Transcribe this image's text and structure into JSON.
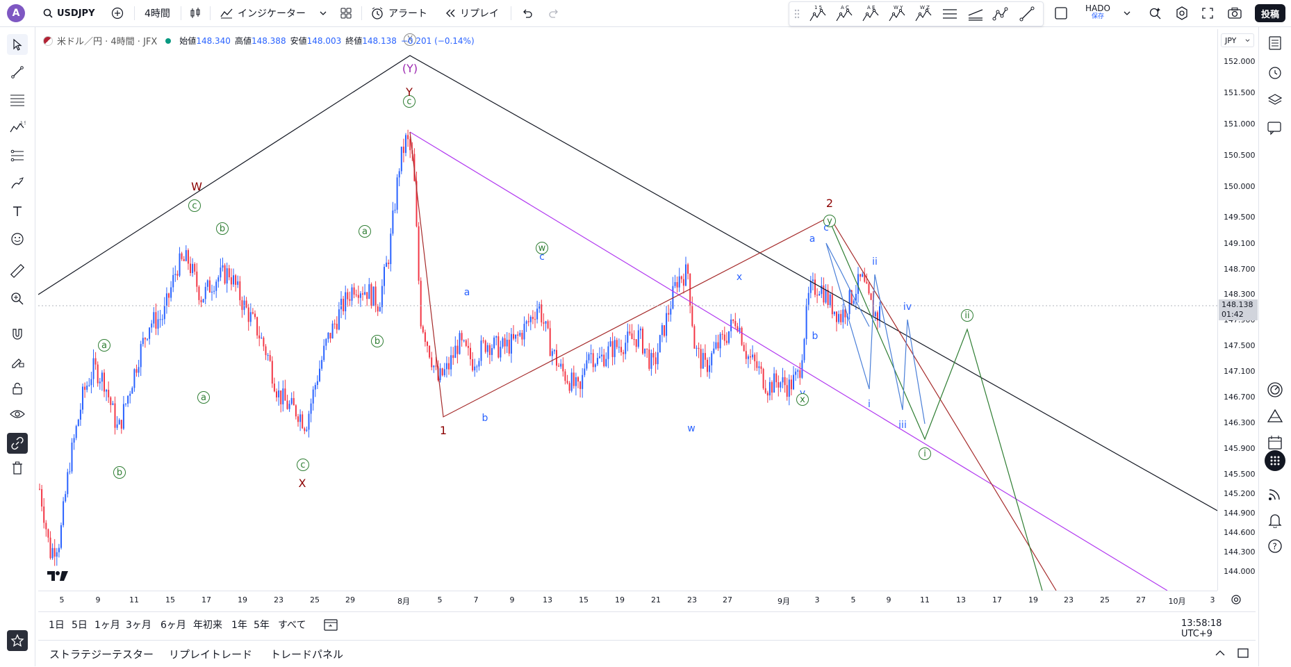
{
  "topbar": {
    "avatar": "A",
    "symbol": "USDJPY",
    "interval": "4時間",
    "indicators": "インジケーター",
    "alert": "アラート",
    "replay": "リプレイ",
    "layout_name": "HADO",
    "layout_sub": "保存",
    "post": "投稿",
    "draw_tools": [
      {
        "top": "1 5",
        "name": "wave-12345-tool"
      },
      {
        "top": "A C",
        "name": "wave-abc-tool"
      },
      {
        "top": "A E",
        "name": "wave-abcde-tool"
      },
      {
        "top": "W Y",
        "name": "wave-wxy-tool"
      },
      {
        "top": "W Z",
        "name": "wave-wxyxz-tool"
      }
    ]
  },
  "legend": {
    "title": "米ドル／円 · 4時間 · JFX",
    "open_label": "始値",
    "open": "148.340",
    "high_label": "高値",
    "high": "148.388",
    "low_label": "安値",
    "low": "148.003",
    "close_label": "終値",
    "close": "148.138",
    "change": "−0.201 (−0.14%)"
  },
  "price_axis": {
    "currency": "JPY",
    "labels": [
      "152.000",
      "151.500",
      "151.000",
      "150.500",
      "150.000",
      "149.500",
      "149.100",
      "148.700",
      "148.300",
      "147.900",
      "147.500",
      "147.100",
      "146.700",
      "146.300",
      "145.900",
      "145.500",
      "145.200",
      "144.900",
      "144.600",
      "144.300",
      "144.000"
    ],
    "current_price": "148.138",
    "countdown": "01:42"
  },
  "time_axis": {
    "labels": [
      "5",
      "9",
      "11",
      "15",
      "17",
      "19",
      "23",
      "25",
      "29",
      "8月",
      "5",
      "7",
      "9",
      "13",
      "15",
      "19",
      "21",
      "23",
      "27",
      "9月",
      "3",
      "5",
      "9",
      "11",
      "13",
      "17",
      "19",
      "23",
      "25",
      "27",
      "10月",
      "3"
    ]
  },
  "range_bar": {
    "ranges": [
      "1日",
      "5日",
      "1ヶ月",
      "3ヶ月",
      "6ヶ月",
      "年初来",
      "1年",
      "5年",
      "すべて"
    ],
    "clock": "13:58:18 UTC+9"
  },
  "bottom_panel": {
    "tabs": [
      "ストラテジーテスター",
      "リプレイトレード",
      "トレードパネル"
    ]
  },
  "wave_labels": {
    "W": "W",
    "X": "X",
    "Y": "Y",
    "Y_paren": "(Y)",
    "X_paren": "X",
    "one": "1",
    "two": "2",
    "circ_a": "a",
    "circ_b": "b",
    "circ_c": "c",
    "circ_w": "w",
    "circ_x": "x",
    "circ_y": "y",
    "circ_i": "i",
    "circ_ii": "ii",
    "a": "a",
    "b": "b",
    "c": "c",
    "w": "w",
    "x": "x",
    "y": "y",
    "i": "i",
    "ii": "ii",
    "iii": "iii",
    "iv": "iv"
  },
  "colors": {
    "up_candle": "#2962ff",
    "down_candle": "#f23645",
    "trend_black": "#131722",
    "trend_purple": "#b138f0",
    "trend_red": "#a52a2a",
    "trend_green": "#2e7d32",
    "wave_blue": "#4a7fd8"
  }
}
